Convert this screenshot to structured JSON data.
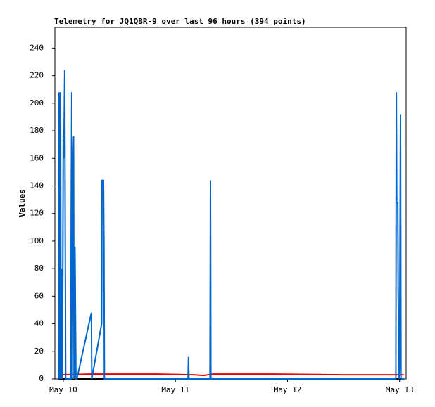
{
  "chart_data": {
    "type": "line",
    "title": "Telemetry for JQ1QBR-9 over last 96 hours (394 points)",
    "y_label": "Values",
    "xlim": [
      -1.8,
      73.4
    ],
    "xticks": [
      {
        "value": 0,
        "label": "May 10"
      },
      {
        "value": 24,
        "label": "May 11"
      },
      {
        "value": 48,
        "label": "May 12"
      },
      {
        "value": 72,
        "label": "May 13"
      }
    ],
    "ylim": [
      0,
      255
    ],
    "yticks": [
      0,
      20,
      40,
      60,
      80,
      100,
      120,
      140,
      160,
      180,
      200,
      220,
      240
    ],
    "grid": false,
    "series": [
      {
        "color": "#000000",
        "x": [
          -1,
          72.9
        ],
        "values": [
          0,
          0
        ]
      },
      {
        "color": "#ee0000",
        "x": [
          -1,
          6,
          20,
          28,
          30,
          32,
          45,
          60,
          72.9
        ],
        "values": [
          3,
          3.5,
          3.5,
          3,
          2.5,
          3.5,
          3.5,
          3,
          3
        ]
      },
      {
        "color": "#0066cc",
        "x": [
          -1,
          -0.9,
          -0.8,
          -0.6,
          -0.5,
          -0.3,
          -0.2,
          0,
          0.1,
          0.3,
          0.5,
          1.6,
          1.7,
          1.8,
          1.9,
          2.1,
          2.2,
          2.3,
          2.5,
          2.6,
          2.7,
          2.9,
          6.0,
          6.1,
          8.2,
          8.3,
          8.6,
          8.7,
          8.8,
          26.7,
          26.8,
          26.9,
          31.4,
          31.5,
          31.6,
          71.2,
          71.3,
          71.4,
          71.6,
          71.7,
          71.9,
          72.0,
          72.2,
          72.3,
          72.9
        ],
        "values": [
          0,
          208,
          0,
          208,
          0,
          80,
          0,
          176,
          160,
          224,
          0,
          0,
          128,
          208,
          0,
          160,
          176,
          0,
          96,
          48,
          0,
          0,
          48,
          0,
          40,
          144,
          144,
          96,
          0,
          0,
          16,
          0,
          0,
          144,
          0,
          0,
          208,
          128,
          128,
          64,
          0,
          8,
          192,
          0,
          0
        ]
      }
    ]
  }
}
